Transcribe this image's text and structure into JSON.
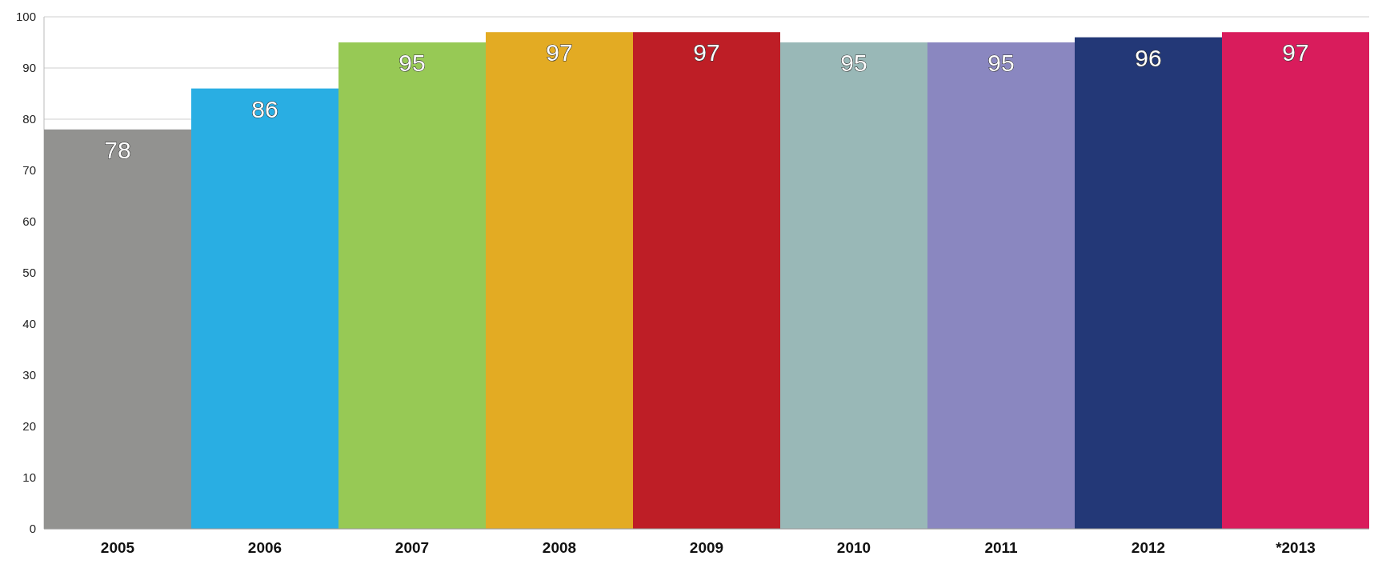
{
  "chart_data": {
    "type": "bar",
    "categories": [
      "2005",
      "2006",
      "2007",
      "2008",
      "2009",
      "2010",
      "2011",
      "2012",
      "*2013"
    ],
    "values": [
      78,
      86,
      95,
      97,
      97,
      95,
      95,
      96,
      97
    ],
    "colors": [
      "#929290",
      "#29aee3",
      "#97c955",
      "#e3ab23",
      "#be1e26",
      "#99b8b7",
      "#8a87c0",
      "#233877",
      "#d91c5c"
    ],
    "ylim": [
      0,
      100
    ],
    "yticks": [
      0,
      10,
      20,
      30,
      40,
      50,
      60,
      70,
      80,
      90,
      100
    ],
    "grid": "y",
    "data_labels": true
  }
}
